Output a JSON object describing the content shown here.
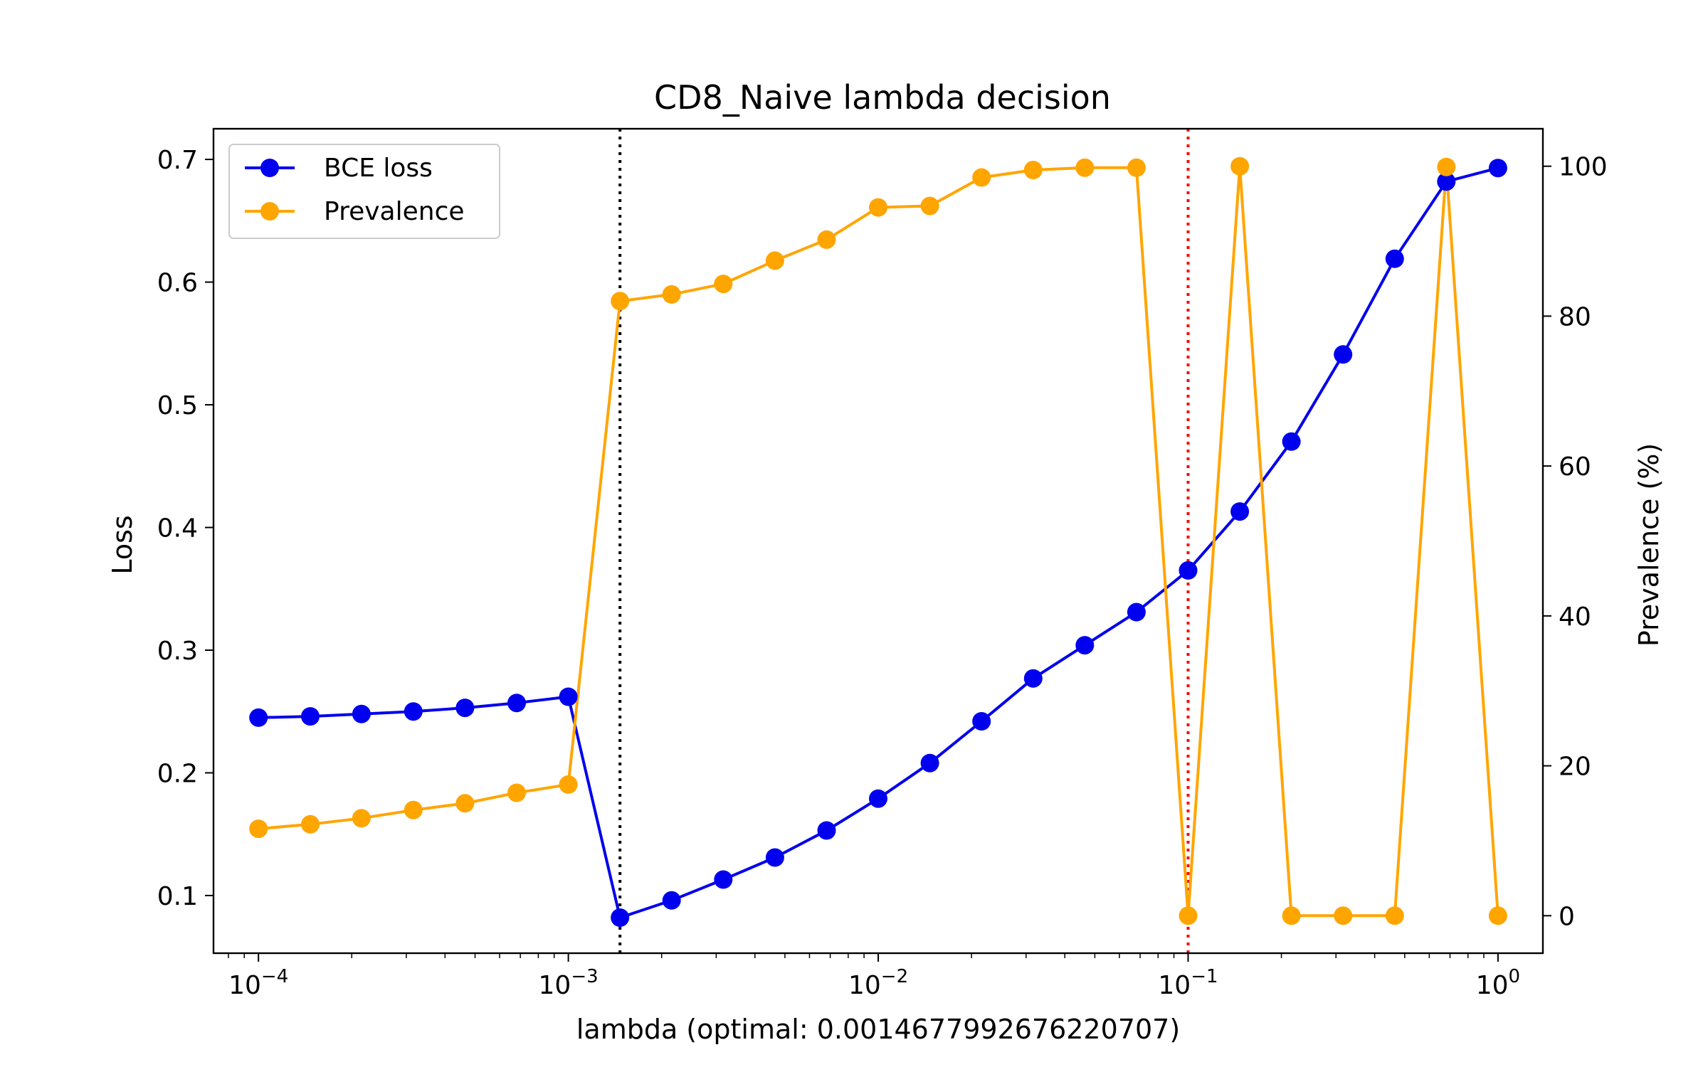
{
  "chart_data": {
    "type": "line",
    "title": "CD8_Naive lambda decision",
    "xlabel": "lambda (optimal: 0.0014677992676220707)",
    "ylabel_left": "Loss",
    "ylabel_right": "Prevalence (%)",
    "x_scale": "log",
    "x_ticks": [
      {
        "value": 0.0001,
        "mantissa": "10",
        "exponent": "−4"
      },
      {
        "value": 0.001,
        "mantissa": "10",
        "exponent": "−3"
      },
      {
        "value": 0.01,
        "mantissa": "10",
        "exponent": "−2"
      },
      {
        "value": 0.1,
        "mantissa": "10",
        "exponent": "−1"
      },
      {
        "value": 1,
        "mantissa": "10",
        "exponent": "0"
      }
    ],
    "xlim": [
      7.16e-05,
      1.396
    ],
    "ylim_left": [
      0.053,
      0.725
    ],
    "yticks_left": [
      "0.1",
      "0.2",
      "0.3",
      "0.4",
      "0.5",
      "0.6",
      "0.7"
    ],
    "ylim_right": [
      -5,
      105
    ],
    "yticks_right": [
      "0",
      "20",
      "40",
      "60",
      "80",
      "100"
    ],
    "x": [
      0.0001,
      0.000147,
      0.000215,
      0.000316,
      0.000464,
      0.000681,
      0.001,
      0.001468,
      0.002154,
      0.003162,
      0.004642,
      0.006813,
      0.01,
      0.014678,
      0.021544,
      0.031623,
      0.046416,
      0.068129,
      0.1,
      0.14678,
      0.215443,
      0.316228,
      0.464159,
      0.681292,
      1.0
    ],
    "series": [
      {
        "name": "BCE loss",
        "axis": "left",
        "color": "#0000ee",
        "values": [
          0.245,
          0.246,
          0.248,
          0.25,
          0.253,
          0.257,
          0.262,
          0.082,
          0.096,
          0.113,
          0.131,
          0.153,
          0.179,
          0.208,
          0.242,
          0.277,
          0.304,
          0.331,
          0.365,
          0.413,
          0.47,
          0.541,
          0.619,
          0.682,
          0.693
        ]
      },
      {
        "name": "Prevalence",
        "axis": "right",
        "color": "#ffa500",
        "values": [
          11.6,
          12.2,
          13.0,
          14.1,
          15.0,
          16.4,
          17.5,
          82.0,
          82.9,
          84.3,
          87.4,
          90.2,
          94.5,
          94.7,
          98.5,
          99.5,
          99.8,
          99.8,
          0.0,
          100.0,
          0.0,
          0.0,
          0.0,
          99.9,
          0.0
        ]
      }
    ],
    "vlines": [
      {
        "x": 0.0014677992676220707,
        "color": "#000000",
        "style": "dotted"
      },
      {
        "x": 0.1,
        "color": "#ff0000",
        "style": "dotted"
      }
    ],
    "legend_position": "upper-left",
    "grid": false
  }
}
